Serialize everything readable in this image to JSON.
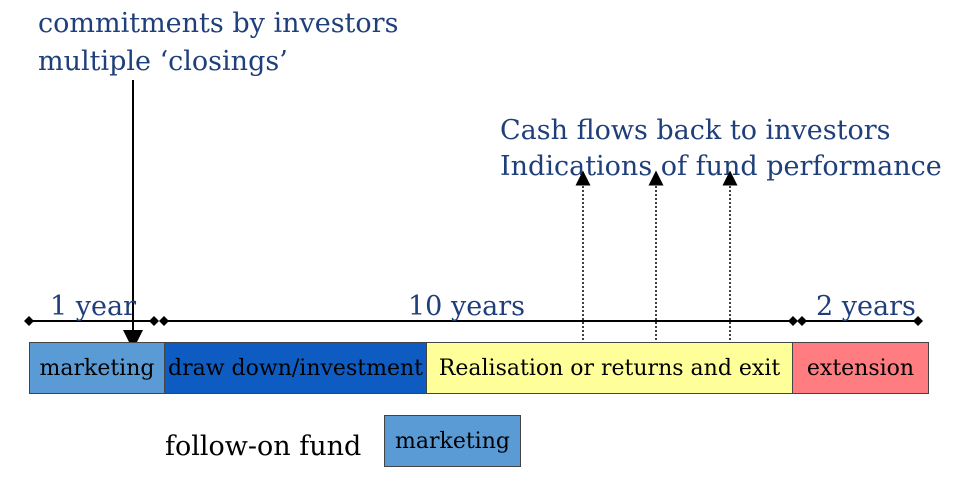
{
  "top_note": {
    "line1": "commitments by investors",
    "line2": "multiple ‘closings’"
  },
  "cash_note": {
    "line1": "Cash flows back to investors",
    "line2": "Indications of fund performance"
  },
  "timeline": {
    "seg1_label": "1 year",
    "seg2_label": "10 years",
    "seg3_label": "2 years"
  },
  "phases": {
    "marketing": "marketing",
    "drawdown": "draw down/investment",
    "realisation": "Realisation or returns and exit",
    "extension": "extension"
  },
  "followon": {
    "label": "follow-on fund",
    "box": "marketing"
  },
  "colors": {
    "marketing": "#5B9BD5",
    "drawdown": "#0E5CC2",
    "realisation": "#FFFF99",
    "extension": "#FF7C80",
    "text_blue": "#1F3F7A"
  }
}
